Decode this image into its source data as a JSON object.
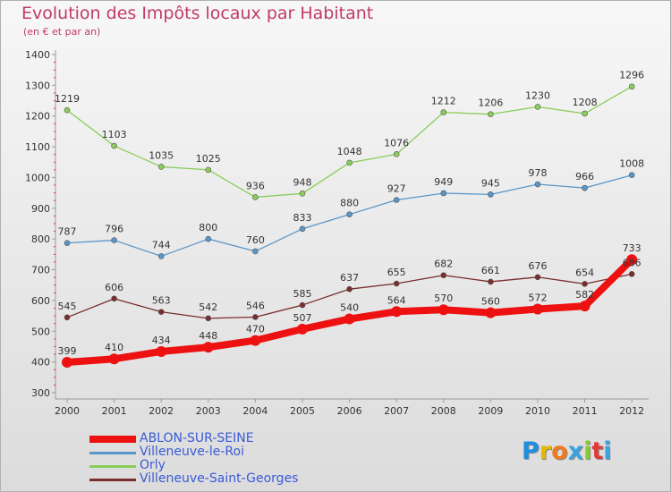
{
  "header": {
    "title": "Evolution des Impôts locaux par Habitant",
    "subtitle": "(en € et par an)"
  },
  "logo": {
    "text": "Proxiti",
    "colors": [
      "#1f8ee0",
      "#e6b800",
      "#f07a1e",
      "#3aa3e0",
      "#8ac832",
      "#e03a3a",
      "#3aa3e0"
    ]
  },
  "chart_data": {
    "type": "line",
    "title": "Evolution des Impôts locaux par Habitant",
    "subtitle": "(en € et par an)",
    "xlabel": "",
    "ylabel": "",
    "categories": [
      "2000",
      "2001",
      "2002",
      "2003",
      "2004",
      "2005",
      "2006",
      "2007",
      "2008",
      "2009",
      "2010",
      "2011",
      "2012"
    ],
    "ylim": [
      300,
      1400
    ],
    "yticks": [
      300,
      400,
      500,
      600,
      700,
      800,
      900,
      1000,
      1100,
      1200,
      1300,
      1400
    ],
    "grid": false,
    "legend_position": "bottom-left",
    "series": [
      {
        "name": "ABLON-SUR-SEINE",
        "color": "#ee1111",
        "emphasis": true,
        "values": [
          399,
          410,
          434,
          448,
          470,
          507,
          540,
          564,
          570,
          560,
          572,
          582,
          733
        ]
      },
      {
        "name": "Villeneuve-le-Roi",
        "color": "#5a96c8",
        "values": [
          787,
          796,
          744,
          800,
          760,
          833,
          880,
          927,
          949,
          945,
          978,
          966,
          1008
        ]
      },
      {
        "name": "Orly",
        "color": "#8acd5a",
        "values": [
          1219,
          1103,
          1035,
          1025,
          936,
          948,
          1048,
          1076,
          1212,
          1206,
          1230,
          1208,
          1296
        ]
      },
      {
        "name": "Villeneuve-Saint-Georges",
        "color": "#7a2d2d",
        "values": [
          545,
          606,
          563,
          542,
          546,
          585,
          637,
          655,
          682,
          661,
          676,
          654,
          686
        ]
      }
    ]
  }
}
